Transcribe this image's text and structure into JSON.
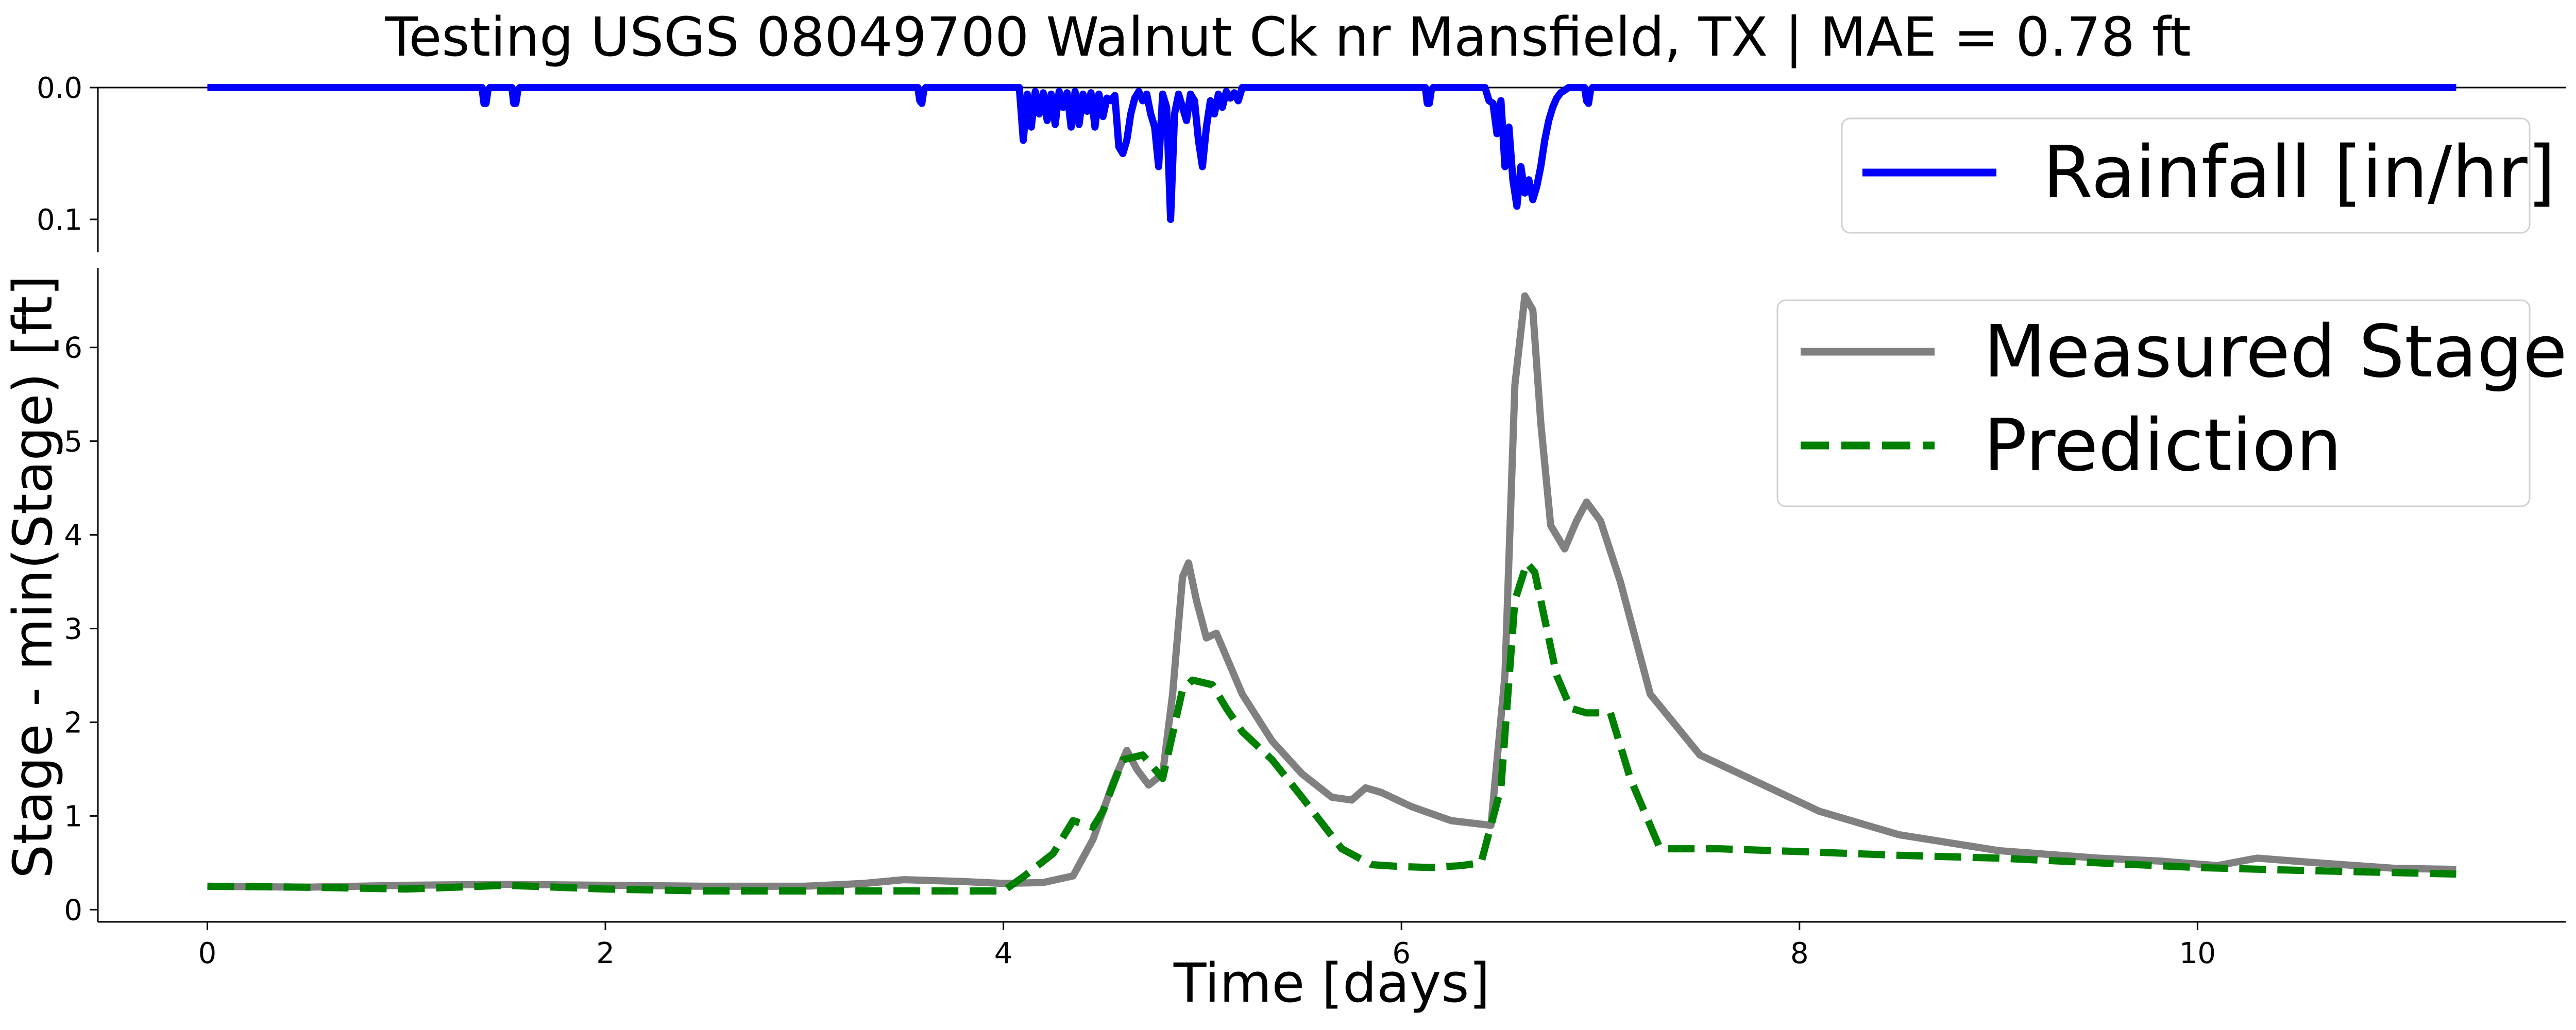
{
  "title": "Testing USGS 08049700 Walnut Ck nr Mansfield, TX | MAE = 0.78 ft",
  "chart_data": [
    {
      "panel": "rainfall",
      "type": "line",
      "ylabel": "",
      "xlim": [
        -0.55,
        11.85
      ],
      "ylim": [
        0.0,
        0.125
      ],
      "y_inverted": true,
      "yticks": [
        0.0,
        0.1
      ],
      "ytick_labels": [
        "0.0",
        "0.1"
      ],
      "x_axis_visible": false,
      "legend_position": "upper-right",
      "series": [
        {
          "name": "Rainfall [in/hr]",
          "color": "#0000ff",
          "style": "solid",
          "x": [
            0,
            1.38,
            1.39,
            1.4,
            1.41,
            1.42,
            1.53,
            1.54,
            1.55,
            1.56,
            1.57,
            3.57,
            3.58,
            3.59,
            3.6,
            3.61,
            4.08,
            4.1,
            4.12,
            4.14,
            4.16,
            4.18,
            4.2,
            4.22,
            4.24,
            4.26,
            4.28,
            4.3,
            4.32,
            4.34,
            4.36,
            4.38,
            4.4,
            4.42,
            4.44,
            4.46,
            4.48,
            4.5,
            4.52,
            4.54,
            4.56,
            4.58,
            4.6,
            4.62,
            4.64,
            4.66,
            4.68,
            4.7,
            4.72,
            4.74,
            4.76,
            4.78,
            4.8,
            4.82,
            4.84,
            4.86,
            4.88,
            4.9,
            4.92,
            4.94,
            4.96,
            4.98,
            5.0,
            5.02,
            5.04,
            5.06,
            5.08,
            5.1,
            5.12,
            5.14,
            5.16,
            5.18,
            5.2,
            6.12,
            6.13,
            6.14,
            6.15,
            6.16,
            6.42,
            6.44,
            6.46,
            6.48,
            6.5,
            6.52,
            6.54,
            6.56,
            6.58,
            6.6,
            6.62,
            6.64,
            6.66,
            6.68,
            6.7,
            6.72,
            6.74,
            6.76,
            6.78,
            6.8,
            6.82,
            6.84,
            6.86,
            6.88,
            6.9,
            6.92,
            6.93,
            6.94,
            6.95,
            6.96,
            11.3
          ],
          "y": [
            0,
            0,
            0.012,
            0.012,
            0.002,
            0,
            0,
            0.012,
            0.012,
            0.002,
            0,
            0,
            0.01,
            0.012,
            0.002,
            0,
            0,
            0.04,
            0.005,
            0.03,
            0.003,
            0.02,
            0.004,
            0.025,
            0.005,
            0.028,
            0.003,
            0.015,
            0.004,
            0.03,
            0.003,
            0.028,
            0.005,
            0.018,
            0.004,
            0.03,
            0.005,
            0.022,
            0.008,
            0.01,
            0.006,
            0.045,
            0.05,
            0.04,
            0.02,
            0.008,
            0.003,
            0.01,
            0.005,
            0.02,
            0.03,
            0.06,
            0.005,
            0.015,
            0.1,
            0.02,
            0.005,
            0.015,
            0.025,
            0.005,
            0.01,
            0.04,
            0.06,
            0.03,
            0.01,
            0.02,
            0.005,
            0.015,
            0.003,
            0.008,
            0.004,
            0.01,
            0,
            0,
            0.012,
            0.012,
            0.002,
            0,
            0,
            0.01,
            0.012,
            0.035,
            0.01,
            0.06,
            0.03,
            0.07,
            0.09,
            0.06,
            0.08,
            0.07,
            0.085,
            0.075,
            0.06,
            0.04,
            0.025,
            0.015,
            0.008,
            0.004,
            0.002,
            0,
            0,
            0,
            0,
            0,
            0.01,
            0.012,
            0.002,
            0,
            0
          ]
        }
      ]
    },
    {
      "panel": "stage",
      "type": "line",
      "xlabel": "Time [days]",
      "ylabel": "Stage - min(Stage) [ft]",
      "xlim": [
        -0.55,
        11.85
      ],
      "ylim": [
        -0.13,
        6.85
      ],
      "xticks": [
        0,
        2,
        4,
        6,
        8,
        10
      ],
      "xtick_labels": [
        "0",
        "2",
        "4",
        "6",
        "8",
        "10"
      ],
      "yticks": [
        0,
        1,
        2,
        3,
        4,
        5,
        6
      ],
      "ytick_labels": [
        "0",
        "1",
        "2",
        "3",
        "4",
        "5",
        "6"
      ],
      "legend_position": "upper-right",
      "series": [
        {
          "name": "Measured Stage",
          "color": "#808080",
          "style": "solid",
          "x": [
            0,
            0.5,
            1.0,
            1.5,
            2.0,
            2.5,
            3.0,
            3.3,
            3.5,
            3.8,
            4.0,
            4.2,
            4.35,
            4.45,
            4.55,
            4.62,
            4.67,
            4.73,
            4.8,
            4.85,
            4.9,
            4.93,
            4.97,
            5.02,
            5.07,
            5.12,
            5.2,
            5.35,
            5.5,
            5.65,
            5.75,
            5.82,
            5.9,
            6.05,
            6.25,
            6.45,
            6.52,
            6.57,
            6.62,
            6.66,
            6.7,
            6.75,
            6.82,
            6.88,
            6.93,
            7.0,
            7.1,
            7.25,
            7.5,
            7.8,
            8.1,
            8.5,
            9.0,
            9.5,
            9.8,
            10.1,
            10.3,
            10.6,
            11.0,
            11.3
          ],
          "y": [
            0.25,
            0.24,
            0.26,
            0.27,
            0.26,
            0.25,
            0.25,
            0.28,
            0.32,
            0.3,
            0.28,
            0.29,
            0.36,
            0.75,
            1.35,
            1.7,
            1.5,
            1.33,
            1.45,
            2.3,
            3.55,
            3.7,
            3.3,
            2.9,
            2.95,
            2.7,
            2.3,
            1.8,
            1.45,
            1.2,
            1.17,
            1.3,
            1.25,
            1.1,
            0.95,
            0.9,
            2.5,
            5.6,
            6.55,
            6.4,
            5.2,
            4.1,
            3.85,
            4.15,
            4.35,
            4.15,
            3.5,
            2.3,
            1.65,
            1.35,
            1.05,
            0.8,
            0.63,
            0.55,
            0.52,
            0.47,
            0.55,
            0.5,
            0.44,
            0.43
          ]
        },
        {
          "name": "Prediction",
          "color": "#008000",
          "style": "dashed",
          "x": [
            0,
            0.5,
            1.0,
            1.5,
            2.0,
            2.5,
            3.0,
            3.5,
            4.0,
            4.1,
            4.25,
            4.35,
            4.45,
            4.5,
            4.6,
            4.7,
            4.8,
            4.9,
            4.95,
            5.05,
            5.12,
            5.2,
            5.35,
            5.5,
            5.7,
            5.85,
            6.0,
            6.15,
            6.3,
            6.4,
            6.5,
            6.57,
            6.63,
            6.67,
            6.72,
            6.78,
            6.85,
            6.93,
            7.05,
            7.15,
            7.3,
            7.6,
            8.0,
            8.5,
            9.0,
            9.5,
            10.0,
            10.5,
            11.3
          ],
          "y": [
            0.25,
            0.24,
            0.22,
            0.26,
            0.22,
            0.2,
            0.2,
            0.2,
            0.2,
            0.35,
            0.6,
            0.95,
            0.88,
            1.05,
            1.6,
            1.65,
            1.4,
            2.35,
            2.45,
            2.4,
            2.15,
            1.9,
            1.6,
            1.2,
            0.65,
            0.48,
            0.46,
            0.45,
            0.47,
            0.5,
            1.3,
            3.3,
            3.7,
            3.6,
            3.1,
            2.5,
            2.15,
            2.1,
            2.1,
            1.4,
            0.65,
            0.65,
            0.62,
            0.58,
            0.55,
            0.5,
            0.45,
            0.42,
            0.38
          ]
        }
      ]
    }
  ]
}
